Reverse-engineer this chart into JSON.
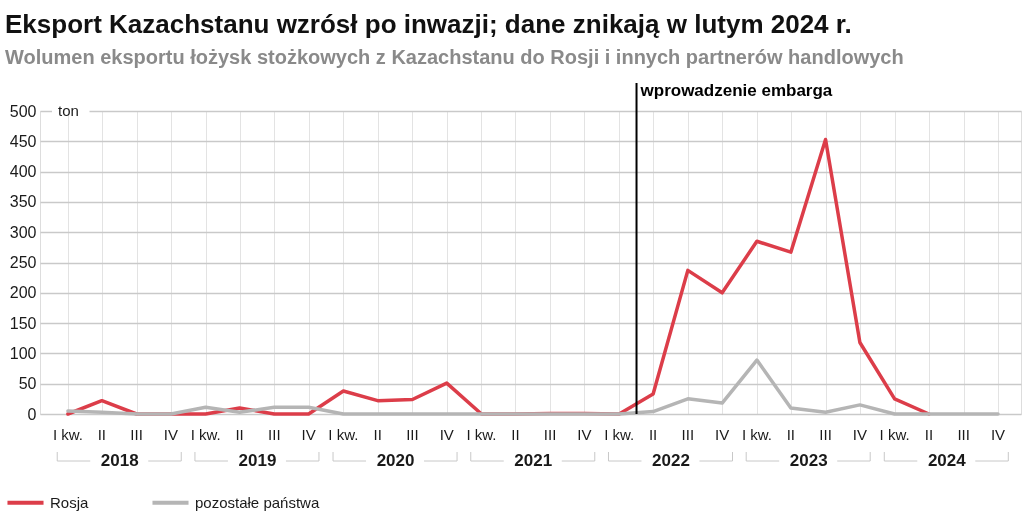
{
  "chart_data": {
    "type": "line",
    "title": "Eksport Kazachstanu wzrósł po inwazji; dane znikają w lutym 2024 r.",
    "subtitle": "Wolumen eksportu łożysk stożkowych z Kazachstanu do Rosji i innych partnerów handlowych",
    "ylabel": "ton",
    "x": [
      "2018-02-15",
      "2018-05-16",
      "2018-08-16",
      "2018-11-15",
      "2019-02-15",
      "2019-05-16",
      "2019-08-16",
      "2019-11-15",
      "2020-02-15",
      "2020-05-16",
      "2020-08-16",
      "2020-11-15",
      "2021-02-15",
      "2021-05-16",
      "2021-08-16",
      "2021-11-15",
      "2022-02-15",
      "2022-05-16",
      "2022-08-16",
      "2022-11-15",
      "2023-02-15",
      "2023-05-16",
      "2023-08-16",
      "2023-11-15",
      "2024-02-15",
      "2024-05-16",
      "2024-08-16",
      "2024-11-15"
    ],
    "xlim": [
      "2017-12-03",
      "2025-01-15"
    ],
    "xticks": [
      {
        "value": "2018-02-15",
        "label": null
      },
      {
        "value": "2018-05-16",
        "label": null
      },
      {
        "value": "2018-07-01",
        "label": "2018"
      },
      {
        "value": "2018-08-16",
        "label": null
      },
      {
        "value": "2018-11-15",
        "label": null
      },
      {
        "value": "2019-02-15",
        "label": null
      },
      {
        "value": "2019-05-16",
        "label": null
      },
      {
        "value": "2019-07-01",
        "label": "2019"
      },
      {
        "value": "2019-08-16",
        "label": null
      },
      {
        "value": "2019-11-15",
        "label": null
      },
      {
        "value": "2020-02-15",
        "label": null
      },
      {
        "value": "2020-05-16",
        "label": null
      },
      {
        "value": "2020-07-01",
        "label": "2020"
      },
      {
        "value": "2020-08-16",
        "label": null
      },
      {
        "value": "2020-11-15",
        "label": null
      },
      {
        "value": "2021-02-15",
        "label": null
      },
      {
        "value": "2021-05-16",
        "label": null
      },
      {
        "value": "2021-07-01",
        "label": "2021"
      },
      {
        "value": "2021-08-16",
        "label": null
      },
      {
        "value": "2021-11-15",
        "label": null
      },
      {
        "value": "2022-02-15",
        "label": null
      },
      {
        "value": "2022-05-16",
        "label": null
      },
      {
        "value": "2022-07-01",
        "label": "2022"
      },
      {
        "value": "2022-08-16",
        "label": null
      },
      {
        "value": "2022-11-15",
        "label": null
      },
      {
        "value": "2023-02-15",
        "label": null
      },
      {
        "value": "2023-05-16",
        "label": null
      },
      {
        "value": "2023-07-01",
        "label": "2023"
      },
      {
        "value": "2023-08-16",
        "label": null
      },
      {
        "value": "2023-11-15",
        "label": null
      },
      {
        "value": "2024-02-15",
        "label": null
      },
      {
        "value": "2024-05-16",
        "label": null
      },
      {
        "value": "2024-07-01",
        "label": "2024"
      },
      {
        "value": "2024-08-16",
        "label": null
      },
      {
        "value": "2024-11-15",
        "label": null
      }
    ],
    "annotations": [
      "I kw.",
      "II",
      "III",
      "IV",
      "I kw.",
      "II",
      "III",
      "IV",
      "I kw.",
      "II",
      "III",
      "IV",
      "I kw.",
      "II",
      "III",
      "IV",
      "I kw.",
      "II",
      "III",
      "IV",
      "I kw.",
      "II",
      "III",
      "IV",
      "I kw.",
      "II",
      "III",
      "IV"
    ],
    "ylim": [
      0,
      500
    ],
    "yticks": [
      0,
      50,
      100,
      150,
      200,
      250,
      300,
      350,
      400,
      450,
      500
    ],
    "series": [
      {
        "name": "Rosja",
        "color": "#dc3d49",
        "values": [
          0,
          22,
          0,
          0,
          0,
          10,
          0,
          0,
          38,
          22,
          24,
          51,
          0,
          0,
          1,
          1,
          0,
          33,
          237,
          200,
          285,
          267,
          453,
          118,
          25,
          0,
          null,
          null
        ]
      },
      {
        "name": "pozostałe państwa",
        "color": "#b5b5b5",
        "values": [
          5,
          3,
          0,
          0,
          11,
          3,
          11,
          11,
          0,
          0,
          0,
          0,
          0,
          0,
          0,
          0,
          0,
          4,
          25,
          18,
          89,
          10,
          3,
          15,
          0,
          0,
          0,
          0
        ]
      }
    ],
    "ref_lines": [
      {
        "axis": "x",
        "value": "2022-04-02",
        "label": "wprowadzenie embarga",
        "color": "#000000"
      }
    ],
    "grid": true,
    "legend": "bottom left",
    "line_style": "solid"
  }
}
